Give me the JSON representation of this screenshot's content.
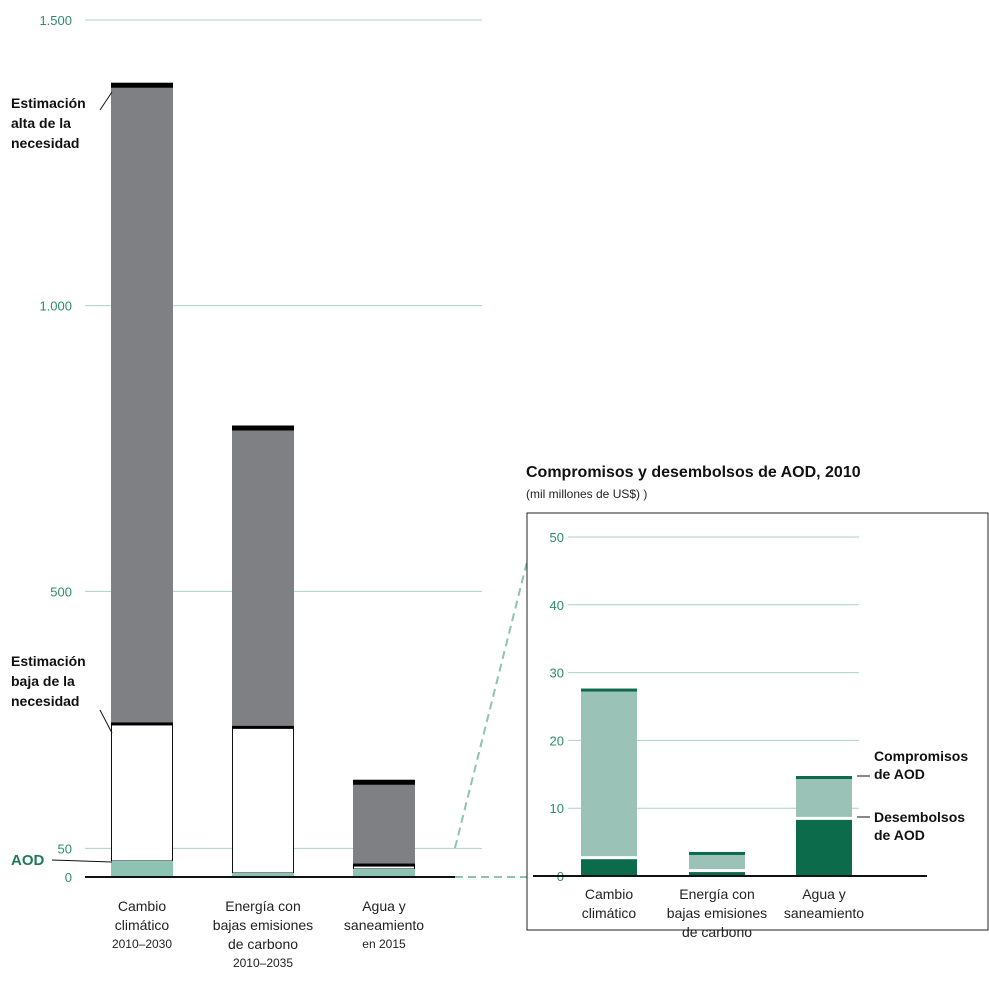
{
  "chart_data": [
    {
      "type": "bar",
      "title": "",
      "categories": [
        {
          "lines": [
            "Cambio",
            "climático"
          ],
          "period": "2010–2030"
        },
        {
          "lines": [
            "Energía con",
            "bajas emisiones",
            "de carbono"
          ],
          "period": "2010–2035"
        },
        {
          "lines": [
            "Agua y",
            "saneamiento"
          ],
          "period": "en 2015"
        }
      ],
      "ylim": [
        0,
        1500
      ],
      "ticks": [
        {
          "value": 0,
          "label": "0"
        },
        {
          "value": 50,
          "label": "50"
        },
        {
          "value": 500,
          "label": "500"
        },
        {
          "value": 1000,
          "label": "1.000"
        },
        {
          "value": 1500,
          "label": "1.500"
        }
      ],
      "series": [
        {
          "name": "AOD",
          "values": [
            28,
            7,
            14
          ]
        },
        {
          "name": "Estimación baja de la necesidad",
          "values": [
            267,
            261,
            20
          ]
        },
        {
          "name": "Estimación alta de la necesidad",
          "values": [
            1385,
            785,
            165
          ]
        }
      ],
      "annotations": {
        "high": [
          "Estimación",
          "alta de la",
          "necesidad"
        ],
        "low": [
          "Estimación",
          "baja de la",
          "necesidad"
        ],
        "aod": "AOD"
      },
      "colors": {
        "high": "#7f8083",
        "low": "#ffffff",
        "aod": "#8cc3b3",
        "cap": "#000000",
        "grid": "#a9d3c2",
        "tick": "#2e8b6a"
      }
    },
    {
      "type": "bar",
      "title": "Compromisos y desembolsos de AOD, 2010",
      "subtitle": "(mil millones de US$) )",
      "categories": [
        {
          "lines": [
            "Cambio",
            "climático"
          ]
        },
        {
          "lines": [
            "Energía con",
            "bajas emisiones",
            "de carbono"
          ]
        },
        {
          "lines": [
            "Agua y",
            "saneamiento"
          ]
        }
      ],
      "ylim": [
        0,
        50
      ],
      "ticks": [
        {
          "value": 0,
          "label": "0"
        },
        {
          "value": 10,
          "label": "10"
        },
        {
          "value": 20,
          "label": "20"
        },
        {
          "value": 30,
          "label": "30"
        },
        {
          "value": 40,
          "label": "40"
        },
        {
          "value": 50,
          "label": "50"
        }
      ],
      "series": [
        {
          "name": "Desembolsos de AOD",
          "values": [
            2.7,
            0.8,
            8.5
          ]
        },
        {
          "name": "Compromisos de AOD",
          "values": [
            27.5,
            3.4,
            14.6
          ]
        }
      ],
      "annotations": {
        "compromisos": [
          "Compromisos",
          "de AOD"
        ],
        "desembolsos": [
          "Desembolsos",
          "de AOD"
        ]
      },
      "colors": {
        "commit": "#9ac2b6",
        "disburse": "#0b6b4a",
        "cap": "#0b6b4a",
        "grid": "#a9d3c2",
        "tick": "#2e8b6a"
      }
    }
  ]
}
